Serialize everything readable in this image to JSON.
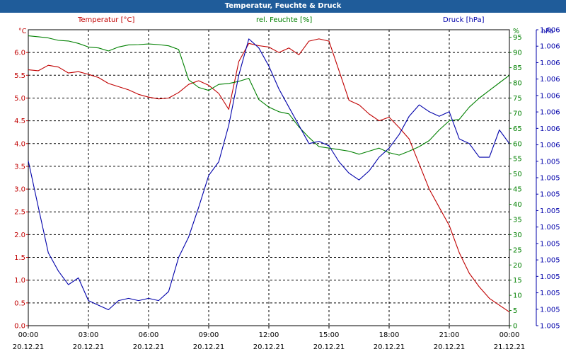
{
  "window": {
    "title": "Temperatur, Feuchte & Druck"
  },
  "legend": {
    "temperature": "Temperatur [°C]",
    "humidity": "rel. Feuchte [%]",
    "pressure": "Druck [hPa]"
  },
  "units": {
    "left": "°C",
    "middle": "%",
    "right": "hPa"
  },
  "colors": {
    "title_bar": "#1f5c9a",
    "temperature": "#c00000",
    "humidity": "#008000",
    "pressure": "#0000aa",
    "grid": "#000000"
  },
  "chart_data": {
    "type": "line",
    "title": "Temperatur, Feuchte & Druck",
    "grid": true,
    "x_ticks": [
      {
        "time": "00:00",
        "date": "20.12.21"
      },
      {
        "time": "03:00",
        "date": "20.12.21"
      },
      {
        "time": "06:00",
        "date": "20.12.21"
      },
      {
        "time": "09:00",
        "date": "20.12.21"
      },
      {
        "time": "12:00",
        "date": "20.12.21"
      },
      {
        "time": "15:00",
        "date": "20.12.21"
      },
      {
        "time": "18:00",
        "date": "20.12.21"
      },
      {
        "time": "21:00",
        "date": "20.12.21"
      },
      {
        "time": "00:00",
        "date": "21.12.21"
      }
    ],
    "x_range_hours": [
      0,
      24
    ],
    "axes": {
      "temperature": {
        "ylim": [
          0,
          6.5
        ],
        "ticks": [
          "0.0",
          "0.5",
          "1.0",
          "1.5",
          "2.0",
          "2.5",
          "3.0",
          "3.5",
          "4.0",
          "4.5",
          "5.0",
          "5.5",
          "6.0"
        ]
      },
      "humidity": {
        "ylim": [
          0,
          97.5
        ],
        "ticks": [
          "0",
          "5",
          "10",
          "15",
          "20",
          "25",
          "30",
          "35",
          "40",
          "45",
          "50",
          "55",
          "60",
          "65",
          "70",
          "75",
          "80",
          "85",
          "90",
          "95"
        ]
      },
      "pressure": {
        "ticks": [
          "1.005",
          "1.005",
          "1.005",
          "1.005",
          "1.005",
          "1.005",
          "1.005",
          "1.005",
          "1.005",
          "1.005",
          "1.005",
          "1.006",
          "1.006",
          "1.006",
          "1.006",
          "1.006",
          "1.006",
          "1.006",
          "1.006"
        ]
      }
    },
    "series": [
      {
        "name": "Temperatur [°C]",
        "axis": "temperature",
        "x": [
          0,
          0.5,
          1,
          1.5,
          2,
          2.5,
          3,
          3.5,
          4,
          4.5,
          5,
          5.5,
          6,
          6.5,
          7,
          7.5,
          8,
          8.5,
          9,
          9.5,
          10,
          10.5,
          11,
          11.5,
          12,
          12.5,
          13,
          13.5,
          14,
          14.5,
          15,
          15.5,
          16,
          16.5,
          17,
          17.5,
          18,
          18.5,
          19,
          19.5,
          20,
          20.5,
          21,
          21.5,
          22,
          22.5,
          23,
          23.5,
          24
        ],
        "values": [
          5.62,
          5.6,
          5.72,
          5.68,
          5.55,
          5.58,
          5.52,
          5.45,
          5.32,
          5.25,
          5.18,
          5.08,
          5.02,
          4.98,
          5.0,
          5.12,
          5.3,
          5.38,
          5.28,
          5.1,
          4.75,
          5.8,
          6.2,
          6.15,
          6.12,
          6.0,
          6.1,
          5.95,
          6.25,
          6.3,
          6.25,
          5.6,
          4.95,
          4.85,
          4.65,
          4.5,
          4.58,
          4.35,
          4.1,
          3.55,
          3.0,
          2.6,
          2.2,
          1.6,
          1.15,
          0.85,
          0.6,
          0.45,
          0.3
        ]
      },
      {
        "name": "rel. Feuchte [%]",
        "axis": "humidity",
        "x": [
          0,
          0.5,
          1,
          1.5,
          2,
          2.5,
          3,
          3.5,
          4,
          4.5,
          5,
          5.5,
          6,
          6.5,
          7,
          7.5,
          8,
          8.5,
          9,
          9.5,
          10,
          10.5,
          11,
          11.5,
          12,
          12.5,
          13,
          13.5,
          14,
          14.5,
          15,
          15.5,
          16,
          16.5,
          17,
          17.5,
          18,
          18.5,
          19,
          19.5,
          20,
          20.5,
          21,
          21.5,
          22,
          22.5,
          23,
          23.5,
          24
        ],
        "values": [
          95.5,
          95.2,
          94.8,
          94.0,
          93.8,
          93.0,
          91.8,
          91.5,
          90.5,
          91.8,
          92.5,
          92.6,
          92.8,
          92.6,
          92.2,
          91.0,
          81.0,
          78.5,
          77.5,
          79.5,
          79.8,
          80.5,
          81.5,
          74.5,
          72.0,
          70.5,
          69.8,
          65.5,
          62.0,
          59.0,
          58.5,
          58.0,
          57.5,
          56.5,
          57.5,
          58.5,
          57.0,
          56.2,
          57.5,
          59.0,
          61.0,
          64.5,
          67.5,
          68.0,
          72.0,
          75.0,
          77.5,
          80.0,
          82.5
        ]
      },
      {
        "name": "Druck [hPa]",
        "axis": "pressure",
        "x": [
          0,
          0.5,
          1,
          1.5,
          2,
          2.5,
          3,
          3.5,
          4,
          4.5,
          5,
          5.5,
          6,
          6.5,
          7,
          7.5,
          8,
          8.5,
          9,
          9.5,
          10,
          10.5,
          11,
          11.5,
          12,
          12.5,
          13,
          13.5,
          14,
          14.5,
          15,
          15.5,
          16,
          16.5,
          17,
          17.5,
          18,
          18.5,
          19,
          19.5,
          20,
          20.5,
          21,
          21.5,
          22,
          22.5,
          23,
          23.5,
          24
        ],
        "values": [
          3.62,
          2.6,
          1.6,
          1.2,
          0.9,
          1.05,
          0.55,
          0.45,
          0.35,
          0.55,
          0.6,
          0.55,
          0.6,
          0.55,
          0.75,
          1.5,
          1.95,
          2.6,
          3.3,
          3.6,
          4.4,
          5.5,
          6.3,
          6.1,
          5.7,
          5.2,
          4.8,
          4.4,
          4.0,
          4.05,
          3.95,
          3.6,
          3.35,
          3.2,
          3.4,
          3.7,
          3.9,
          4.2,
          4.6,
          4.85,
          4.7,
          4.6,
          4.7,
          4.1,
          4.0,
          3.7,
          3.7,
          4.3,
          4.0
        ]
      }
    ]
  }
}
